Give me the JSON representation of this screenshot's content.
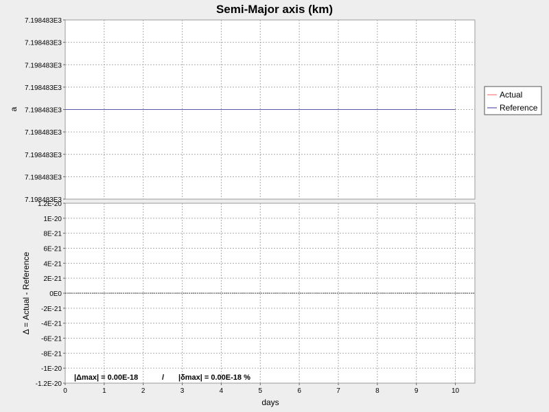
{
  "chart_data": {
    "type": "line",
    "title": "Semi-Major axis (km)",
    "x_axis": {
      "label": "days",
      "range": [
        0,
        10.5
      ],
      "ticks": [
        0,
        1,
        2,
        3,
        4,
        5,
        6,
        7,
        8,
        9,
        10
      ],
      "tick_labels": [
        "0",
        "1",
        "2",
        "3",
        "4",
        "5",
        "6",
        "7",
        "8",
        "9",
        "10"
      ]
    },
    "grid": true,
    "legend": {
      "placement": "right",
      "entries": [
        {
          "name": "Actual",
          "color": "#ff7777"
        },
        {
          "name": "Reference",
          "color": "#5555aa"
        }
      ]
    },
    "top_panel": {
      "ylabel": "a",
      "tick_labels": [
        "7.198483E3",
        "7.198483E3",
        "7.198483E3",
        "7.198483E3",
        "7.198483E3",
        "7.198483E3",
        "7.198483E3",
        "7.198483E3",
        "7.198483E3"
      ],
      "series": [
        {
          "name": "Actual",
          "color": "#ff7777",
          "x": [
            0,
            10
          ],
          "y": [
            7198.483,
            7198.483
          ]
        },
        {
          "name": "Reference",
          "color": "#5555aa",
          "x": [
            0,
            10
          ],
          "y": [
            7198.483,
            7198.483
          ]
        }
      ]
    },
    "bottom_panel": {
      "ylabel": "Δ = Actual - Reference",
      "ylim": [
        -1.2e-20,
        1.2e-20
      ],
      "ticks": [
        1.2e-20,
        1e-20,
        8e-21,
        6e-21,
        4e-21,
        2e-21,
        0,
        -2e-21,
        -4e-21,
        -6e-21,
        -8e-21,
        -1e-20,
        -1.2e-20
      ],
      "tick_labels": [
        "1.2E-20",
        "1E-20",
        "8E-21",
        "6E-21",
        "4E-21",
        "2E-21",
        "0E0",
        "-2E-21",
        "-4E-21",
        "-6E-21",
        "-8E-21",
        "-1E-20",
        "-1.2E-20"
      ],
      "series": [
        {
          "name": "Δ",
          "color": "#333333",
          "x": [
            0,
            10.5
          ],
          "y": [
            0,
            0
          ]
        }
      ],
      "annotation_left": "|Δmax| = 0.00E-18",
      "annotation_sep": "/",
      "annotation_right": "|δmax| = 0.00E-18 %"
    }
  }
}
